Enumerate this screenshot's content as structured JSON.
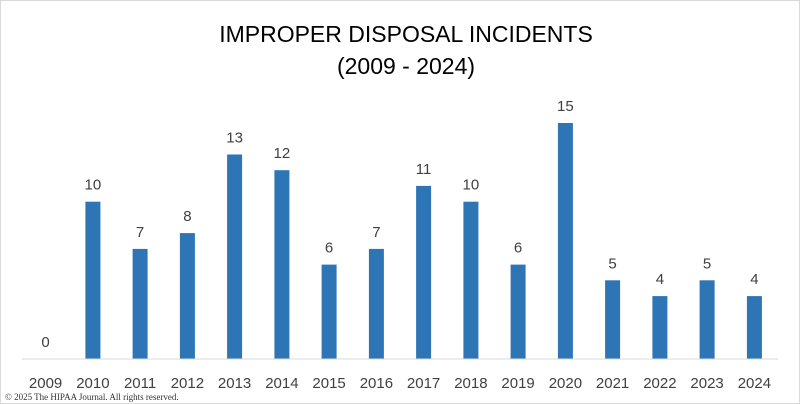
{
  "chart_data": {
    "type": "bar",
    "title_line1": "IMPROPER DISPOSAL INCIDENTS",
    "title_line2": "(2009 - 2024)",
    "categories": [
      "2009",
      "2010",
      "2011",
      "2012",
      "2013",
      "2014",
      "2015",
      "2016",
      "2017",
      "2018",
      "2019",
      "2020",
      "2021",
      "2022",
      "2023",
      "2024"
    ],
    "values": [
      0,
      10,
      7,
      8,
      13,
      12,
      6,
      7,
      11,
      10,
      6,
      15,
      5,
      4,
      5,
      4
    ],
    "xlabel": "",
    "ylabel": "",
    "ylim": [
      0,
      15
    ],
    "grid": false,
    "data_labels": true,
    "bar_color": "#2e75b6",
    "axis_color": "#d9d9d9"
  },
  "copyright": "© 2025 The HIPAA Journal. All rights reserved."
}
